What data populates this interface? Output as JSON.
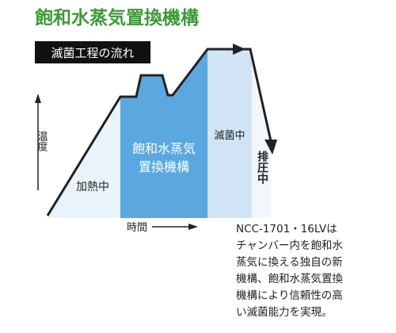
{
  "title": "飽和水蒸気置換機構",
  "subtitle": "滅菌工程の流れ",
  "axis": {
    "y": "温度",
    "x": "時間"
  },
  "phases": {
    "heating": "加熱中",
    "replacement": [
      "飽和水蒸気",
      "置換機構"
    ],
    "sterilizing": "滅菌中",
    "exhaust": "排圧中"
  },
  "description": [
    "NCC-1701・16LVは",
    "チャンバー内を飽和水",
    "蒸気に換える独自の新",
    "機構、飽和水蒸気置換",
    "機構により信頼性の高",
    "い滅菌能力を実現。"
  ]
}
